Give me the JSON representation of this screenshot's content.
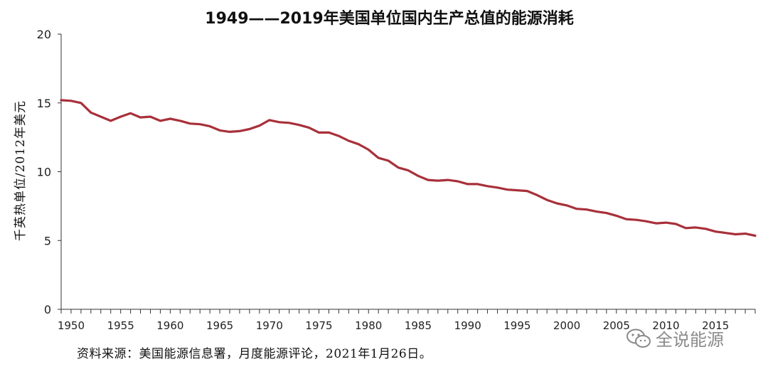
{
  "chart_data": {
    "type": "line",
    "title": "1949——2019年美国单位国内生产总值的能源消耗",
    "ylabel": "千英热单位/2012年美元",
    "xlabel": "",
    "ylim": [
      0,
      20
    ],
    "xlim": [
      1949,
      2019
    ],
    "y_ticks": [
      0,
      5,
      10,
      15,
      20
    ],
    "x_ticks": [
      1950,
      1955,
      1960,
      1965,
      1970,
      1975,
      1980,
      1985,
      1990,
      1995,
      2000,
      2005,
      2010,
      2015
    ],
    "grid": false,
    "line_color": "#a8303a",
    "series": [
      {
        "x": [
          1949,
          1950,
          1951,
          1952,
          1953,
          1954,
          1955,
          1956,
          1957,
          1958,
          1959,
          1960,
          1961,
          1962,
          1963,
          1964,
          1965,
          1966,
          1967,
          1968,
          1969,
          1970,
          1971,
          1972,
          1973,
          1974,
          1975,
          1976,
          1977,
          1978,
          1979,
          1980,
          1981,
          1982,
          1983,
          1984,
          1985,
          1986,
          1987,
          1988,
          1989,
          1990,
          1991,
          1992,
          1993,
          1994,
          1995,
          1996,
          1997,
          1998,
          1999,
          2000,
          2001,
          2002,
          2003,
          2004,
          2005,
          2006,
          2007,
          2008,
          2009,
          2010,
          2011,
          2012,
          2013,
          2014,
          2015,
          2016,
          2017,
          2018,
          2019
        ],
        "values": [
          15.2,
          15.15,
          15.0,
          14.3,
          14.0,
          13.7,
          14.0,
          14.25,
          13.95,
          14.0,
          13.7,
          13.85,
          13.7,
          13.5,
          13.45,
          13.3,
          13.0,
          12.9,
          12.95,
          13.1,
          13.35,
          13.75,
          13.6,
          13.55,
          13.4,
          13.2,
          12.85,
          12.85,
          12.6,
          12.25,
          12.0,
          11.6,
          11.0,
          10.8,
          10.3,
          10.1,
          9.7,
          9.4,
          9.35,
          9.4,
          9.3,
          9.1,
          9.1,
          8.95,
          8.85,
          8.7,
          8.65,
          8.6,
          8.3,
          7.95,
          7.7,
          7.55,
          7.3,
          7.25,
          7.1,
          7.0,
          6.8,
          6.55,
          6.5,
          6.4,
          6.25,
          6.3,
          6.2,
          5.9,
          5.95,
          5.85,
          5.65,
          5.55,
          5.45,
          5.5,
          5.35
        ]
      }
    ]
  },
  "source_note": "资料来源：美国能源信息署，月度能源评论，2021年1月26日。",
  "watermark": {
    "text": "全说能源",
    "icon": "wechat-icon"
  }
}
